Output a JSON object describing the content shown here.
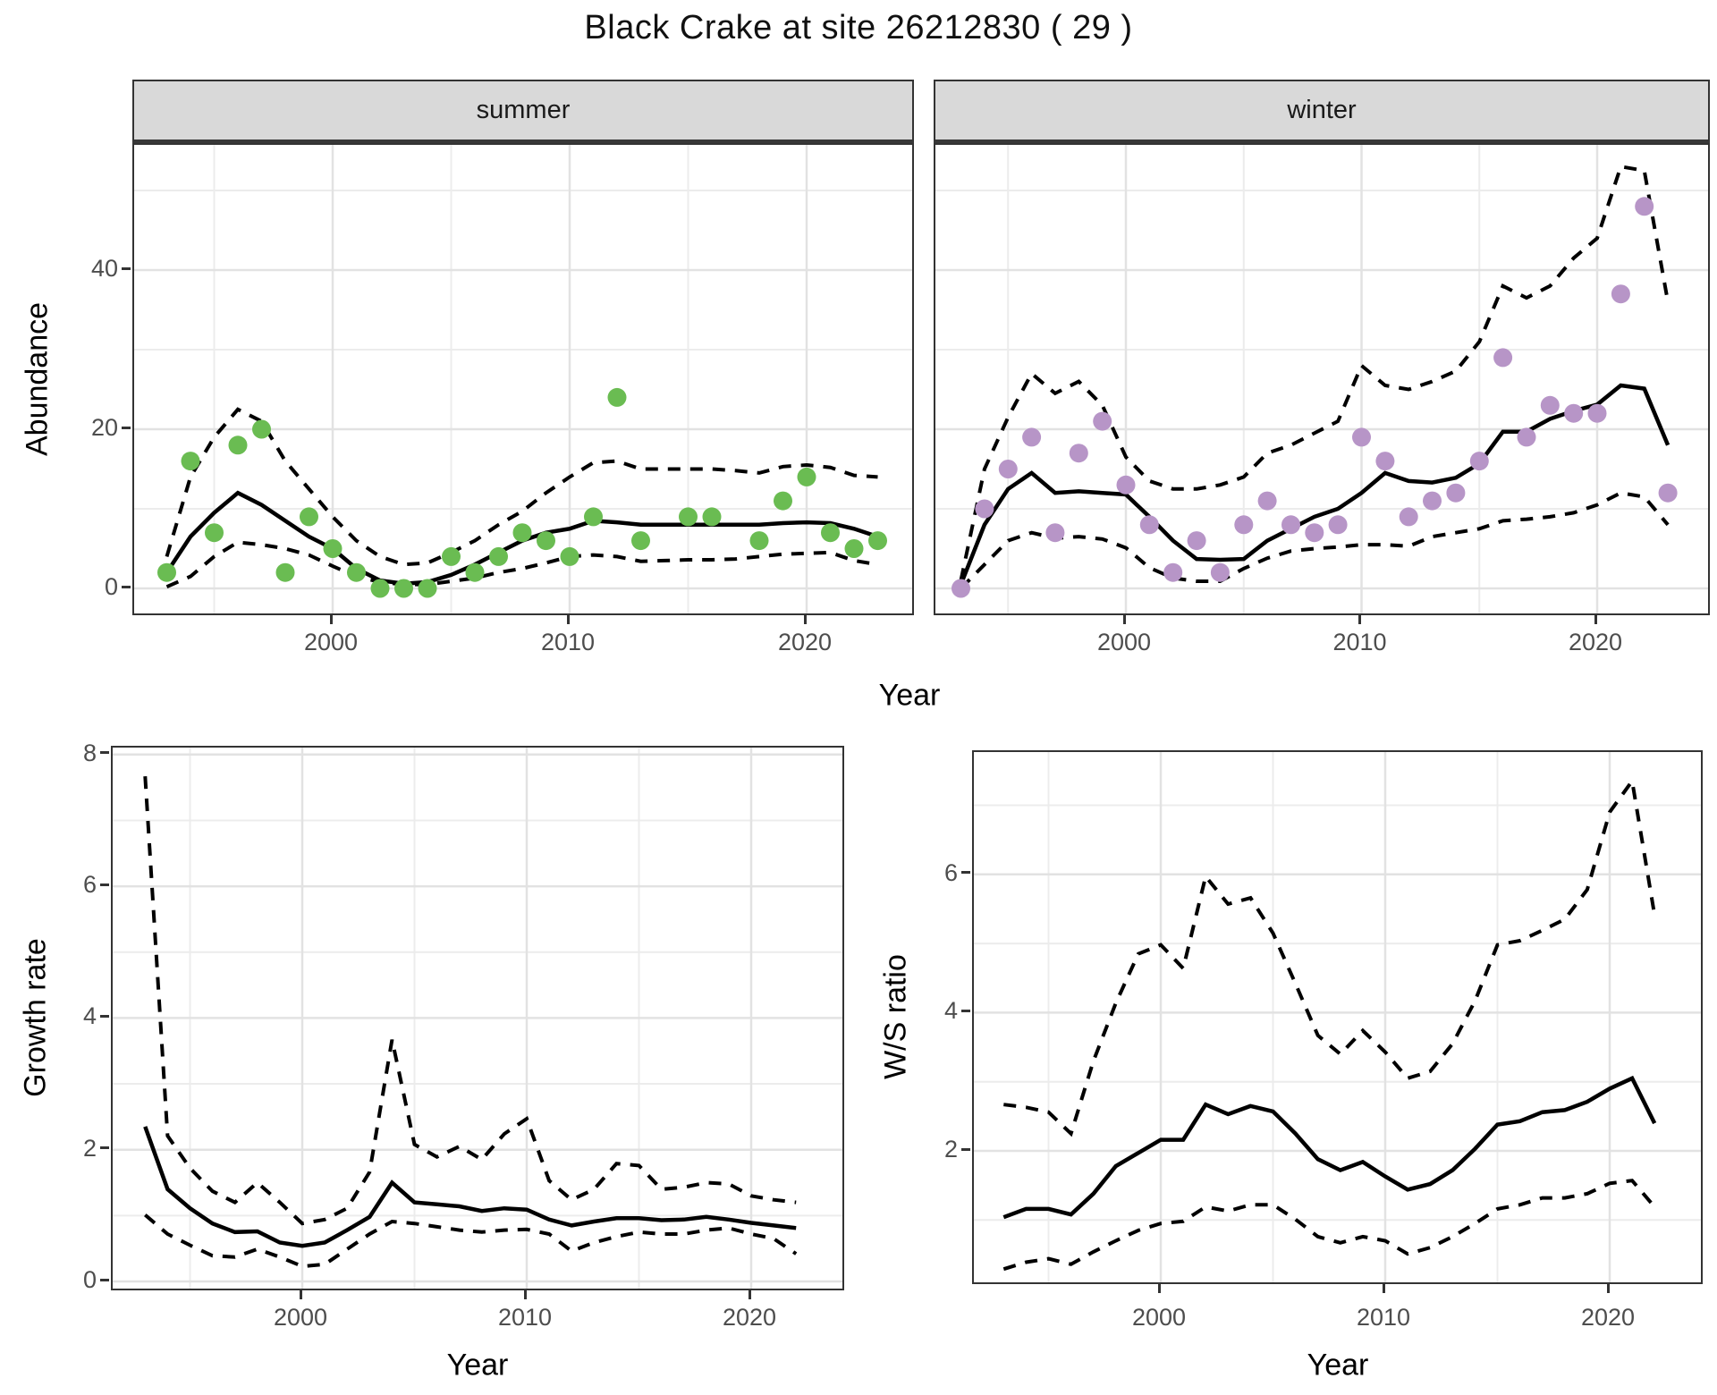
{
  "title": "Black Crake at site 26212830 ( 29 )",
  "labels": {
    "abundance": "Abundance",
    "year": "Year",
    "growth_rate": "Growth rate",
    "ws_ratio": "W/S ratio",
    "summer": "summer",
    "winter": "winter"
  },
  "colors": {
    "summer_point": "#6abc52",
    "winter_point": "#b795c7",
    "line": "#000000",
    "strip_bg": "#d9d9d9",
    "grid_major": "#e2e2e2",
    "grid_minor": "#ececec",
    "tick_text": "#4d4d4d",
    "border": "#333333"
  },
  "chart_data": [
    {
      "panel": "summer",
      "type": "scatter",
      "facet_label": "summer",
      "xlabel": "Year",
      "ylabel": "Abundance",
      "xlim": [
        1991.6,
        2024.6
      ],
      "ylim": [
        -3.7,
        55.7
      ],
      "x_ticks": [
        2000,
        2010,
        2020
      ],
      "x_minor": [
        1995,
        2005,
        2015
      ],
      "y_ticks": [
        0,
        20,
        40
      ],
      "y_minor": [
        10,
        30,
        50
      ],
      "points": {
        "years": [
          1993,
          1994,
          1995,
          1996,
          1997,
          1998,
          1999,
          2000,
          2001,
          2002,
          2003,
          2004,
          2005,
          2006,
          2007,
          2008,
          2009,
          2010,
          2011,
          2012,
          2013,
          2015,
          2016,
          2018,
          2019,
          2020,
          2021,
          2022,
          2023
        ],
        "values": [
          2,
          16,
          7,
          18,
          20,
          2,
          9,
          5,
          2,
          0,
          0,
          0,
          4,
          2,
          4,
          7,
          6,
          4,
          9,
          24,
          6,
          9,
          9,
          6,
          11,
          14,
          7,
          5,
          6
        ]
      },
      "mean": {
        "years": [
          1993,
          1994,
          1995,
          1996,
          1997,
          1998,
          1999,
          2000,
          2001,
          2002,
          2003,
          2004,
          2005,
          2006,
          2007,
          2008,
          2009,
          2010,
          2011,
          2012,
          2013,
          2014,
          2015,
          2016,
          2017,
          2018,
          2019,
          2020,
          2021,
          2022,
          2023
        ],
        "values": [
          2,
          6.5,
          9.5,
          12,
          10.5,
          8.5,
          6.5,
          5,
          2.5,
          1,
          0.6,
          0.8,
          1.7,
          3,
          4.5,
          6,
          7,
          7.5,
          8.5,
          8.3,
          8,
          8,
          8,
          8,
          8,
          8,
          8.2,
          8.3,
          8.2,
          7.5,
          6.5
        ]
      },
      "upper": {
        "years": [
          1993,
          1994,
          1995,
          1996,
          1997,
          1998,
          1999,
          2000,
          2001,
          2002,
          2003,
          2004,
          2005,
          2006,
          2007,
          2008,
          2009,
          2010,
          2011,
          2012,
          2013,
          2014,
          2015,
          2016,
          2017,
          2018,
          2019,
          2020,
          2021,
          2022,
          2023
        ],
        "values": [
          4,
          14,
          19,
          22.5,
          21,
          16,
          12.5,
          9,
          6,
          4,
          3,
          3.2,
          4.5,
          6,
          8,
          9.7,
          12,
          14,
          15.8,
          16,
          15,
          15,
          15,
          15,
          14.8,
          14.5,
          15.3,
          15.5,
          15.2,
          14.2,
          14
        ]
      },
      "lower": {
        "years": [
          1993,
          1994,
          1995,
          1996,
          1997,
          1998,
          1999,
          2000,
          2001,
          2002,
          2003,
          2004,
          2005,
          2006,
          2007,
          2008,
          2009,
          2010,
          2011,
          2012,
          2013,
          2014,
          2015,
          2016,
          2017,
          2018,
          2019,
          2020,
          2021,
          2022,
          2023
        ],
        "values": [
          0.2,
          1.5,
          4,
          5.8,
          5.5,
          5,
          4.2,
          2.8,
          1.5,
          0.8,
          0.5,
          0.5,
          0.9,
          1.3,
          2,
          2.5,
          3.2,
          4,
          4.2,
          4,
          3.4,
          3.5,
          3.6,
          3.6,
          3.7,
          4,
          4.3,
          4.4,
          4.5,
          3.5,
          3
        ]
      }
    },
    {
      "panel": "winter",
      "type": "scatter",
      "facet_label": "winter",
      "xlabel": "Year",
      "ylabel": "Abundance",
      "xlim": [
        1991.8,
        2024.9
      ],
      "ylim": [
        -3.7,
        55.7
      ],
      "x_ticks": [
        2000,
        2010,
        2020
      ],
      "x_minor": [
        1995,
        2005,
        2015
      ],
      "y_ticks": [
        0,
        20,
        40
      ],
      "y_minor": [
        10,
        30,
        50
      ],
      "points": {
        "years": [
          1993,
          1994,
          1995,
          1996,
          1997,
          1998,
          1999,
          2000,
          2001,
          2002,
          2003,
          2004,
          2005,
          2006,
          2007,
          2008,
          2009,
          2010,
          2011,
          2012,
          2013,
          2014,
          2015,
          2016,
          2017,
          2018,
          2019,
          2020,
          2021,
          2022,
          2023
        ],
        "values": [
          0,
          10,
          15,
          19,
          7,
          17,
          21,
          13,
          8,
          2,
          6,
          2,
          8,
          11,
          8,
          7,
          8,
          19,
          16,
          9,
          11,
          12,
          16,
          29,
          19,
          23,
          22,
          22,
          37,
          48,
          12
        ]
      },
      "mean": {
        "years": [
          1993,
          1994,
          1995,
          1996,
          1997,
          1998,
          1999,
          2000,
          2001,
          2002,
          2003,
          2004,
          2005,
          2006,
          2007,
          2008,
          2009,
          2010,
          2011,
          2012,
          2013,
          2014,
          2015,
          2016,
          2017,
          2018,
          2019,
          2020,
          2021,
          2022,
          2023
        ],
        "values": [
          0.5,
          8,
          12.5,
          14.5,
          12,
          12.2,
          12,
          11.8,
          9,
          6,
          3.7,
          3.6,
          3.7,
          6,
          7.5,
          9,
          10,
          12,
          14.5,
          13.5,
          13.3,
          13.9,
          15.7,
          19.7,
          19.7,
          21.3,
          22.3,
          23.1,
          25.5,
          25.1,
          18
        ]
      },
      "upper": {
        "years": [
          1993,
          1994,
          1995,
          1996,
          1997,
          1998,
          1999,
          2000,
          2001,
          2002,
          2003,
          2004,
          2005,
          2006,
          2007,
          2008,
          2009,
          2010,
          2011,
          2012,
          2013,
          2014,
          2015,
          2016,
          2017,
          2018,
          2019,
          2020,
          2021,
          2022,
          2023
        ],
        "values": [
          1,
          15,
          21.5,
          27,
          24.5,
          26,
          23,
          16.5,
          13.5,
          12.5,
          12.5,
          13,
          14,
          17,
          18,
          19.5,
          21,
          28,
          25.5,
          25,
          26,
          27.3,
          31,
          38,
          36.5,
          38,
          41.5,
          44,
          53,
          52.5,
          36
        ]
      },
      "lower": {
        "years": [
          1993,
          1994,
          1995,
          1996,
          1997,
          1998,
          1999,
          2000,
          2001,
          2002,
          2003,
          2004,
          2005,
          2006,
          2007,
          2008,
          2009,
          2010,
          2011,
          2012,
          2013,
          2014,
          2015,
          2016,
          2017,
          2018,
          2019,
          2020,
          2021,
          2022,
          2023
        ],
        "values": [
          0,
          3,
          6,
          7,
          6.3,
          6.5,
          6.2,
          5.1,
          2.6,
          1.3,
          0.9,
          0.9,
          2.5,
          3.8,
          4.7,
          5,
          5.2,
          5.5,
          5.5,
          5.3,
          6.5,
          7,
          7.5,
          8.5,
          8.7,
          9,
          9.5,
          10.5,
          12,
          11.5,
          8
        ]
      }
    },
    {
      "panel": "growth",
      "type": "line",
      "facet_label": "",
      "xlabel": "Year",
      "ylabel": "Growth rate",
      "xlim": [
        1991.6,
        2024.2
      ],
      "ylim": [
        -0.16,
        8.1
      ],
      "x_ticks": [
        2000,
        2010,
        2020
      ],
      "x_minor": [
        1995,
        2005,
        2015
      ],
      "y_ticks": [
        0,
        2,
        4,
        6,
        8
      ],
      "y_minor": [
        1,
        3,
        5,
        7
      ],
      "mean": {
        "years": [
          1993,
          1994,
          1995,
          1996,
          1997,
          1998,
          1999,
          2000,
          2001,
          2002,
          2003,
          2004,
          2005,
          2006,
          2007,
          2008,
          2009,
          2010,
          2011,
          2012,
          2013,
          2014,
          2015,
          2016,
          2017,
          2018,
          2019,
          2020,
          2021,
          2022
        ],
        "values": [
          2.35,
          1.4,
          1.11,
          0.88,
          0.75,
          0.76,
          0.59,
          0.54,
          0.59,
          0.78,
          0.98,
          1.5,
          1.2,
          1.17,
          1.14,
          1.07,
          1.11,
          1.09,
          0.94,
          0.85,
          0.91,
          0.96,
          0.96,
          0.93,
          0.94,
          0.98,
          0.94,
          0.89,
          0.85,
          0.81
        ]
      },
      "upper": {
        "years": [
          1993,
          1994,
          1995,
          1996,
          1997,
          1998,
          1999,
          2000,
          2001,
          2002,
          2003,
          2004,
          2005,
          2006,
          2007,
          2008,
          2009,
          2010,
          2011,
          2012,
          2013,
          2014,
          2015,
          2016,
          2017,
          2018,
          2019,
          2020,
          2021,
          2022
        ],
        "values": [
          7.67,
          2.21,
          1.72,
          1.37,
          1.2,
          1.5,
          1.2,
          0.88,
          0.94,
          1.11,
          1.66,
          3.67,
          2.08,
          1.89,
          2.05,
          1.85,
          2.24,
          2.47,
          1.53,
          1.24,
          1.4,
          1.79,
          1.76,
          1.4,
          1.43,
          1.5,
          1.48,
          1.3,
          1.24,
          1.2
        ]
      },
      "lower": {
        "years": [
          1993,
          1994,
          1995,
          1996,
          1997,
          1998,
          1999,
          2000,
          2001,
          2002,
          2003,
          2004,
          2005,
          2006,
          2007,
          2008,
          2009,
          2010,
          2011,
          2012,
          2013,
          2014,
          2015,
          2016,
          2017,
          2018,
          2019,
          2020,
          2021,
          2022
        ],
        "values": [
          1.01,
          0.72,
          0.55,
          0.39,
          0.37,
          0.49,
          0.37,
          0.23,
          0.26,
          0.49,
          0.72,
          0.91,
          0.88,
          0.83,
          0.78,
          0.75,
          0.78,
          0.79,
          0.72,
          0.46,
          0.59,
          0.68,
          0.75,
          0.72,
          0.72,
          0.78,
          0.81,
          0.72,
          0.65,
          0.42
        ]
      }
    },
    {
      "panel": "ws",
      "type": "line",
      "facet_label": "",
      "xlabel": "Year",
      "ylabel": "W/S ratio",
      "xlim": [
        1991.7,
        2024.2
      ],
      "ylim": [
        0.04,
        7.77
      ],
      "x_ticks": [
        2000,
        2010,
        2020
      ],
      "x_minor": [
        1995,
        2005,
        2015
      ],
      "y_ticks": [
        2,
        4,
        6
      ],
      "y_minor": [
        1,
        3,
        5,
        7
      ],
      "mean": {
        "years": [
          1993,
          1994,
          1995,
          1996,
          1997,
          1998,
          1999,
          2000,
          2001,
          2002,
          2003,
          2004,
          2005,
          2006,
          2007,
          2008,
          2009,
          2010,
          2011,
          2012,
          2013,
          2014,
          2015,
          2016,
          2017,
          2018,
          2019,
          2020,
          2021,
          2022
        ],
        "values": [
          1.04,
          1.16,
          1.16,
          1.08,
          1.38,
          1.78,
          1.97,
          2.16,
          2.16,
          2.67,
          2.53,
          2.65,
          2.57,
          2.25,
          1.88,
          1.72,
          1.84,
          1.63,
          1.44,
          1.52,
          1.72,
          2.03,
          2.38,
          2.43,
          2.56,
          2.59,
          2.71,
          2.9,
          3.05,
          2.4
        ]
      },
      "upper": {
        "years": [
          1993,
          1994,
          1995,
          1996,
          1997,
          1998,
          1999,
          2000,
          2001,
          2002,
          2003,
          2004,
          2005,
          2006,
          2007,
          2008,
          2009,
          2010,
          2011,
          2012,
          2013,
          2014,
          2015,
          2016,
          2017,
          2018,
          2019,
          2020,
          2021,
          2022
        ],
        "values": [
          2.67,
          2.63,
          2.56,
          2.25,
          3.3,
          4.14,
          4.85,
          4.98,
          4.64,
          5.97,
          5.57,
          5.66,
          5.15,
          4.42,
          3.67,
          3.4,
          3.74,
          3.43,
          3.05,
          3.15,
          3.55,
          4.17,
          4.98,
          5.04,
          5.19,
          5.35,
          5.78,
          6.9,
          7.35,
          5.41
        ]
      },
      "lower": {
        "years": [
          1993,
          1994,
          1995,
          1996,
          1997,
          1998,
          1999,
          2000,
          2001,
          2002,
          2003,
          2004,
          2005,
          2006,
          2007,
          2008,
          2009,
          2010,
          2011,
          2012,
          2013,
          2014,
          2015,
          2016,
          2017,
          2018,
          2019,
          2020,
          2021,
          2022
        ],
        "values": [
          0.29,
          0.39,
          0.44,
          0.36,
          0.54,
          0.7,
          0.85,
          0.95,
          0.98,
          1.19,
          1.13,
          1.22,
          1.22,
          1.01,
          0.76,
          0.67,
          0.76,
          0.7,
          0.51,
          0.6,
          0.76,
          0.95,
          1.16,
          1.22,
          1.32,
          1.32,
          1.38,
          1.53,
          1.57,
          1.19
        ]
      }
    }
  ]
}
